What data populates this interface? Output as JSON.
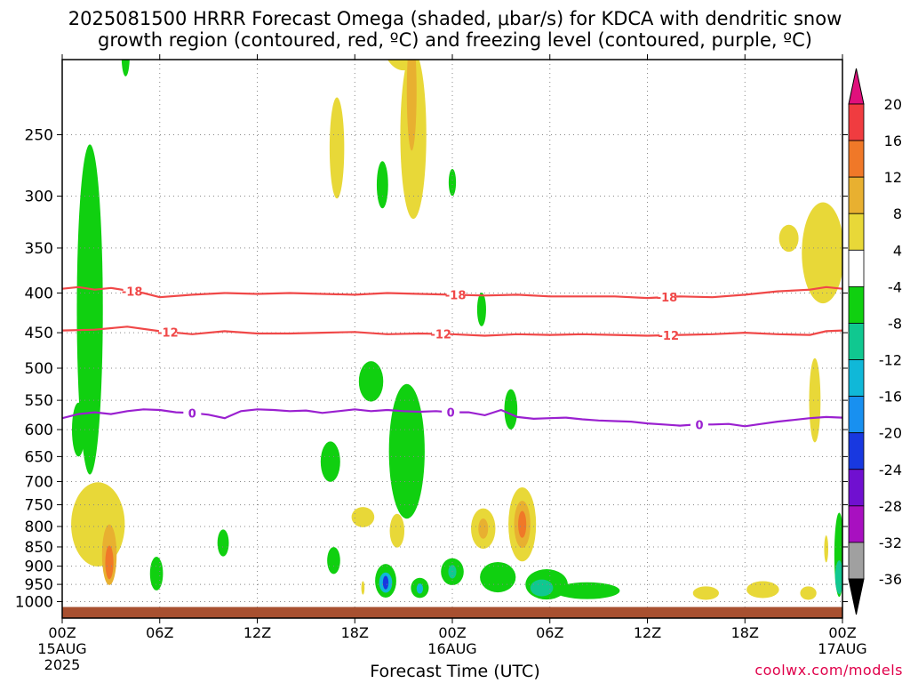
{
  "title_line1": "2025081500 HRRR Forecast Omega (shaded, μbar/s) for KDCA with dendritic snow",
  "title_line2": "growth region (contoured, red, ºC) and freezing level (contoured, purple, ºC)",
  "credit": "coolwx.com/models",
  "chart_data": {
    "type": "heatmap",
    "title": "2025081500 HRRR Forecast Omega (shaded, μbar/s) for KDCA with dendritic snow growth region (contoured, red, ºC) and freezing level (contoured, purple, ºC)",
    "xlabel": "Forecast Time (UTC)",
    "ylabel": "",
    "x_range_hours": [
      0,
      48
    ],
    "y_range_hPa": [
      1050,
      200
    ],
    "y_scale": "log",
    "grid": true,
    "x_ticks": [
      {
        "hour": 0,
        "label": "00Z",
        "sub": "15AUG",
        "sub2": "2025"
      },
      {
        "hour": 6,
        "label": "06Z"
      },
      {
        "hour": 12,
        "label": "12Z"
      },
      {
        "hour": 18,
        "label": "18Z"
      },
      {
        "hour": 24,
        "label": "00Z",
        "sub": "16AUG"
      },
      {
        "hour": 30,
        "label": "06Z"
      },
      {
        "hour": 36,
        "label": "12Z"
      },
      {
        "hour": 42,
        "label": "18Z"
      },
      {
        "hour": 48,
        "label": "00Z",
        "sub": "17AUG"
      }
    ],
    "y_ticks": [
      250,
      300,
      350,
      400,
      450,
      500,
      550,
      600,
      650,
      700,
      750,
      800,
      850,
      900,
      950,
      1000
    ],
    "colorbar": {
      "labels": [
        "20",
        "16",
        "12",
        "8",
        "4",
        "-4",
        "-8",
        "-12",
        "-16",
        "-20",
        "-24",
        "-28",
        "-32",
        "-36"
      ],
      "bins": [
        {
          "from": 20,
          "to": 16,
          "color": "#f03c40"
        },
        {
          "from": 16,
          "to": 12,
          "color": "#f07828"
        },
        {
          "from": 12,
          "to": 8,
          "color": "#e8b030"
        },
        {
          "from": 8,
          "to": 4,
          "color": "#e8d838"
        },
        {
          "from": 4,
          "to": -4,
          "color": "#ffffff"
        },
        {
          "from": -4,
          "to": -8,
          "color": "#10d010"
        },
        {
          "from": -8,
          "to": -12,
          "color": "#10c890"
        },
        {
          "from": -12,
          "to": -16,
          "color": "#10b8d8"
        },
        {
          "from": -16,
          "to": -20,
          "color": "#1890f0"
        },
        {
          "from": -20,
          "to": -24,
          "color": "#1838e0"
        },
        {
          "from": -24,
          "to": -28,
          "color": "#7010d0"
        },
        {
          "from": -28,
          "to": -32,
          "color": "#a810c0"
        },
        {
          "from": -32,
          "to": -36,
          "color": "#a0a0a0"
        }
      ],
      "top_arrow_color": "#e0107c",
      "bottom_arrow_color": "#000000"
    },
    "omega_regions": [
      {
        "x": 3.9,
        "p": 198,
        "w": 0.5,
        "h": 0.12,
        "color": "#10d010"
      },
      {
        "x": 1.7,
        "p": 420,
        "w": 1.6,
        "h": 0.98,
        "color": "#10d010"
      },
      {
        "x": 1.0,
        "p": 600,
        "w": 0.8,
        "h": 0.16,
        "color": "#10d010"
      },
      {
        "x": 16.9,
        "p": 260,
        "w": 0.9,
        "h": 0.3,
        "color": "#e8d838"
      },
      {
        "x": 21.0,
        "p": 185,
        "w": 2.8,
        "h": 0.22,
        "color": "#e8d838"
      },
      {
        "x": 21.6,
        "p": 250,
        "w": 1.6,
        "h": 0.5,
        "color": "#e8d838"
      },
      {
        "x": 21.5,
        "p": 220,
        "w": 0.6,
        "h": 0.35,
        "color": "#e8b030"
      },
      {
        "x": 19.7,
        "p": 290,
        "w": 0.7,
        "h": 0.14,
        "color": "#10d010"
      },
      {
        "x": 24.0,
        "p": 288,
        "w": 0.45,
        "h": 0.08,
        "color": "#10d010"
      },
      {
        "x": 46.8,
        "p": 355,
        "w": 2.6,
        "h": 0.3,
        "color": "#e8d838"
      },
      {
        "x": 44.7,
        "p": 340,
        "w": 1.2,
        "h": 0.08,
        "color": "#e8d838"
      },
      {
        "x": 46.3,
        "p": 550,
        "w": 0.7,
        "h": 0.25,
        "color": "#e8d838"
      },
      {
        "x": 25.8,
        "p": 420,
        "w": 0.55,
        "h": 0.1,
        "color": "#10d010"
      },
      {
        "x": 19.0,
        "p": 520,
        "w": 1.5,
        "h": 0.12,
        "color": "#10d010"
      },
      {
        "x": 21.2,
        "p": 640,
        "w": 2.2,
        "h": 0.4,
        "color": "#10d010"
      },
      {
        "x": 27.6,
        "p": 565,
        "w": 0.8,
        "h": 0.12,
        "color": "#10d010"
      },
      {
        "x": 16.5,
        "p": 660,
        "w": 1.2,
        "h": 0.12,
        "color": "#10d010"
      },
      {
        "x": 2.2,
        "p": 795,
        "w": 3.3,
        "h": 0.25,
        "color": "#e8d838"
      },
      {
        "x": 2.9,
        "p": 870,
        "w": 0.9,
        "h": 0.18,
        "color": "#e8b030"
      },
      {
        "x": 2.9,
        "p": 890,
        "w": 0.5,
        "h": 0.1,
        "color": "#f07828"
      },
      {
        "x": 5.8,
        "p": 920,
        "w": 0.8,
        "h": 0.1,
        "color": "#10d010"
      },
      {
        "x": 9.9,
        "p": 840,
        "w": 0.7,
        "h": 0.08,
        "color": "#10d010"
      },
      {
        "x": 16.7,
        "p": 885,
        "w": 0.8,
        "h": 0.08,
        "color": "#10d010"
      },
      {
        "x": 18.5,
        "p": 778,
        "w": 1.4,
        "h": 0.06,
        "color": "#e8d838"
      },
      {
        "x": 20.6,
        "p": 810,
        "w": 0.9,
        "h": 0.1,
        "color": "#e8d838"
      },
      {
        "x": 19.9,
        "p": 940,
        "w": 1.3,
        "h": 0.1,
        "color": "#10d010"
      },
      {
        "x": 19.9,
        "p": 945,
        "w": 0.8,
        "h": 0.06,
        "color": "#10b8d8"
      },
      {
        "x": 19.9,
        "p": 945,
        "w": 0.35,
        "h": 0.04,
        "color": "#1838e0"
      },
      {
        "x": 22.0,
        "p": 960,
        "w": 1.1,
        "h": 0.06,
        "color": "#10d010"
      },
      {
        "x": 22.0,
        "p": 962,
        "w": 0.4,
        "h": 0.03,
        "color": "#10b8d8"
      },
      {
        "x": 24.0,
        "p": 915,
        "w": 1.4,
        "h": 0.08,
        "color": "#10d010"
      },
      {
        "x": 24.0,
        "p": 915,
        "w": 0.5,
        "h": 0.04,
        "color": "#10c890"
      },
      {
        "x": 25.9,
        "p": 805,
        "w": 1.5,
        "h": 0.12,
        "color": "#e8d838"
      },
      {
        "x": 25.9,
        "p": 805,
        "w": 0.6,
        "h": 0.06,
        "color": "#e8b030"
      },
      {
        "x": 26.8,
        "p": 930,
        "w": 2.2,
        "h": 0.09,
        "color": "#10d010"
      },
      {
        "x": 28.3,
        "p": 795,
        "w": 1.7,
        "h": 0.22,
        "color": "#e8d838"
      },
      {
        "x": 28.3,
        "p": 795,
        "w": 1.0,
        "h": 0.14,
        "color": "#e8b030"
      },
      {
        "x": 28.3,
        "p": 795,
        "w": 0.5,
        "h": 0.08,
        "color": "#f07828"
      },
      {
        "x": 29.8,
        "p": 950,
        "w": 2.6,
        "h": 0.09,
        "color": "#10d010"
      },
      {
        "x": 32.3,
        "p": 968,
        "w": 4.0,
        "h": 0.05,
        "color": "#10d010"
      },
      {
        "x": 29.5,
        "p": 960,
        "w": 1.4,
        "h": 0.05,
        "color": "#10c890"
      },
      {
        "x": 39.6,
        "p": 975,
        "w": 1.6,
        "h": 0.04,
        "color": "#e8d838"
      },
      {
        "x": 43.1,
        "p": 965,
        "w": 2.0,
        "h": 0.05,
        "color": "#e8d838"
      },
      {
        "x": 45.9,
        "p": 975,
        "w": 1.0,
        "h": 0.04,
        "color": "#e8d838"
      },
      {
        "x": 47.8,
        "p": 870,
        "w": 0.6,
        "h": 0.25,
        "color": "#10d010"
      },
      {
        "x": 47.8,
        "p": 930,
        "w": 0.5,
        "h": 0.1,
        "color": "#10c890"
      },
      {
        "x": 47.0,
        "p": 855,
        "w": 0.25,
        "h": 0.08,
        "color": "#e8d838"
      },
      {
        "x": 18.5,
        "p": 960,
        "w": 0.2,
        "h": 0.04,
        "color": "#e8d838"
      }
    ],
    "contours": [
      {
        "label": "-18",
        "color": "#f04848",
        "x": [
          0,
          1,
          2,
          3,
          4,
          5,
          6,
          8,
          10,
          12,
          14,
          16,
          18,
          20,
          22,
          24,
          26,
          28,
          30,
          32,
          34,
          36,
          38,
          40,
          42,
          44,
          46,
          47,
          48
        ],
        "p": [
          395,
          393,
          396,
          394,
          397,
          400,
          405,
          402,
          400,
          401,
          400,
          401,
          402,
          400,
          401,
          402,
          403,
          402,
          404,
          404,
          404,
          406,
          404,
          405,
          402,
          398,
          396,
          393,
          395
        ],
        "label_hours": [
          4.3,
          24.2,
          37.2
        ]
      },
      {
        "label": "-12",
        "color": "#f04848",
        "x": [
          0,
          2,
          4,
          6,
          8,
          10,
          12,
          14,
          16,
          18,
          20,
          22,
          24,
          26,
          28,
          30,
          32,
          34,
          36,
          38,
          40,
          42,
          44,
          46,
          47,
          48
        ],
        "p": [
          447,
          446,
          442,
          448,
          452,
          448,
          451,
          451,
          450,
          449,
          452,
          451,
          452,
          454,
          452,
          453,
          452,
          453,
          454,
          453,
          452,
          450,
          452,
          453,
          448,
          447
        ],
        "label_hours": [
          6.5,
          23.3,
          37.3
        ]
      },
      {
        "label": "0",
        "color": "#9a20d0",
        "x": [
          0,
          1,
          2,
          3,
          4,
          5,
          6,
          7,
          8,
          9,
          10,
          11,
          12,
          13,
          14,
          15,
          16,
          17,
          18,
          19,
          20,
          21,
          22,
          23,
          24,
          25,
          26,
          27,
          28,
          29,
          30,
          31,
          32,
          33,
          34,
          35,
          36,
          37,
          38,
          39,
          40,
          41,
          42,
          43,
          44,
          45,
          46,
          47,
          48
        ],
        "p": [
          580,
          573,
          570,
          573,
          568,
          565,
          566,
          570,
          571,
          574,
          580,
          568,
          565,
          566,
          568,
          567,
          571,
          568,
          565,
          568,
          566,
          568,
          569,
          568,
          570,
          570,
          575,
          566,
          578,
          581,
          580,
          579,
          582,
          584,
          585,
          586,
          589,
          591,
          593,
          591,
          591,
          590,
          594,
          590,
          586,
          583,
          580,
          578,
          579
        ],
        "label_hours": [
          8.0,
          23.9,
          39.2
        ]
      }
    ],
    "ground": {
      "color": "#a85030",
      "p_top": 1016
    }
  }
}
